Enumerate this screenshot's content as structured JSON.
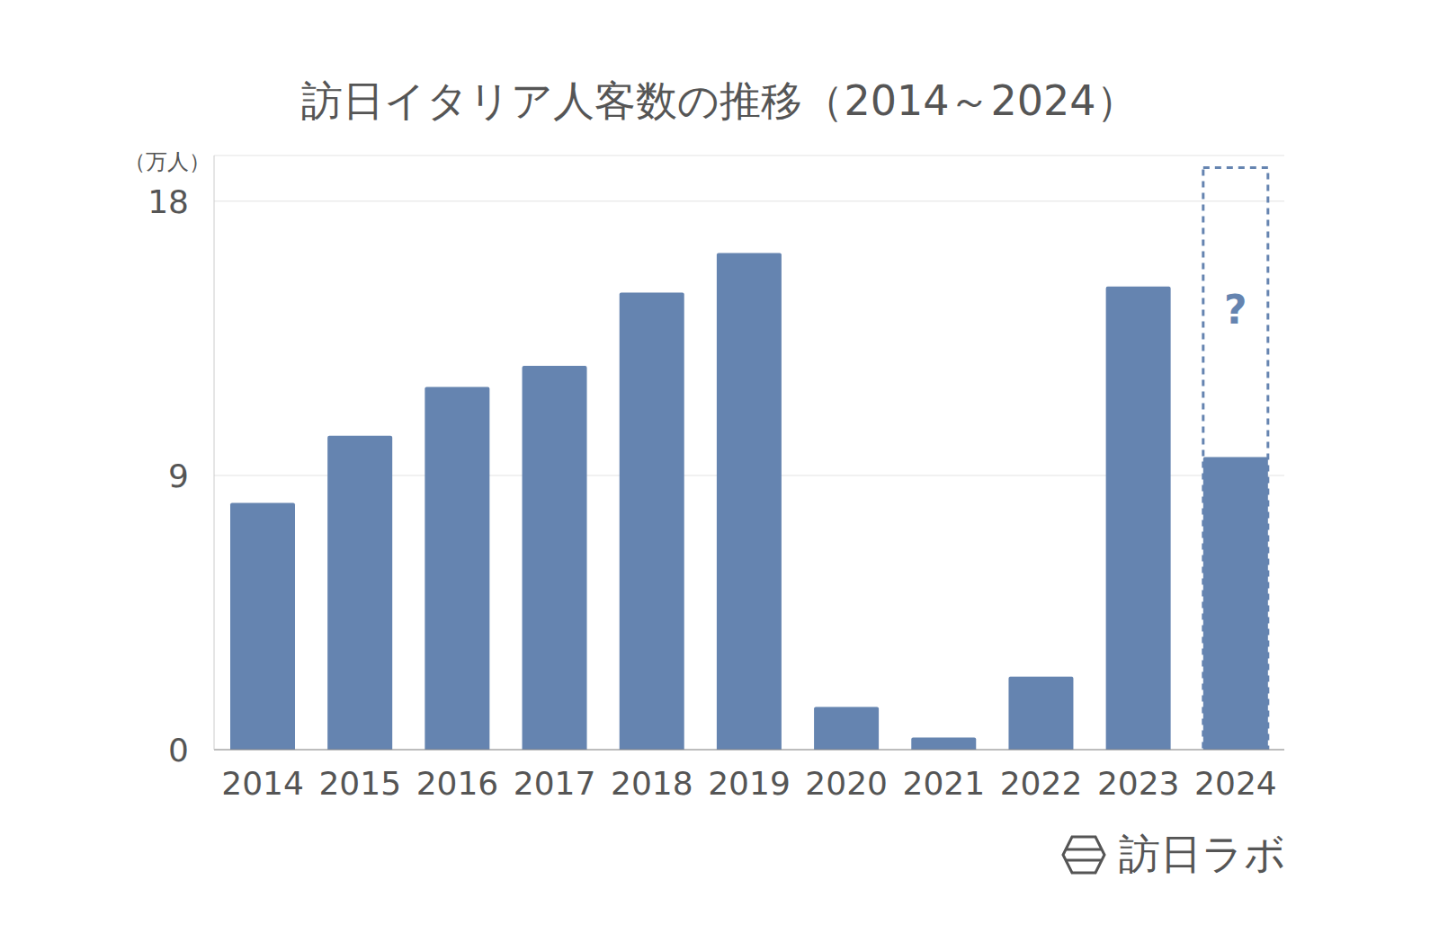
{
  "chart_data": {
    "type": "bar",
    "title": "訪日イタリア人客数の推移（2014～2024）",
    "ylabel": "（万人）",
    "source": "訪日ラボ",
    "categories": [
      "2014",
      "2015",
      "2016",
      "2017",
      "2018",
      "2019",
      "2020",
      "2021",
      "2022",
      "2023",
      "2024"
    ],
    "values": [
      8.1,
      10.3,
      11.9,
      12.6,
      15.0,
      16.3,
      1.4,
      0.4,
      2.4,
      15.2,
      9.6
    ],
    "color": "#6584b0",
    "ylim": [
      0,
      19.5
    ],
    "yticks": [
      0,
      9,
      18
    ],
    "grid": true,
    "projection": {
      "category": "2024",
      "value": 19.1,
      "label": "?"
    }
  }
}
